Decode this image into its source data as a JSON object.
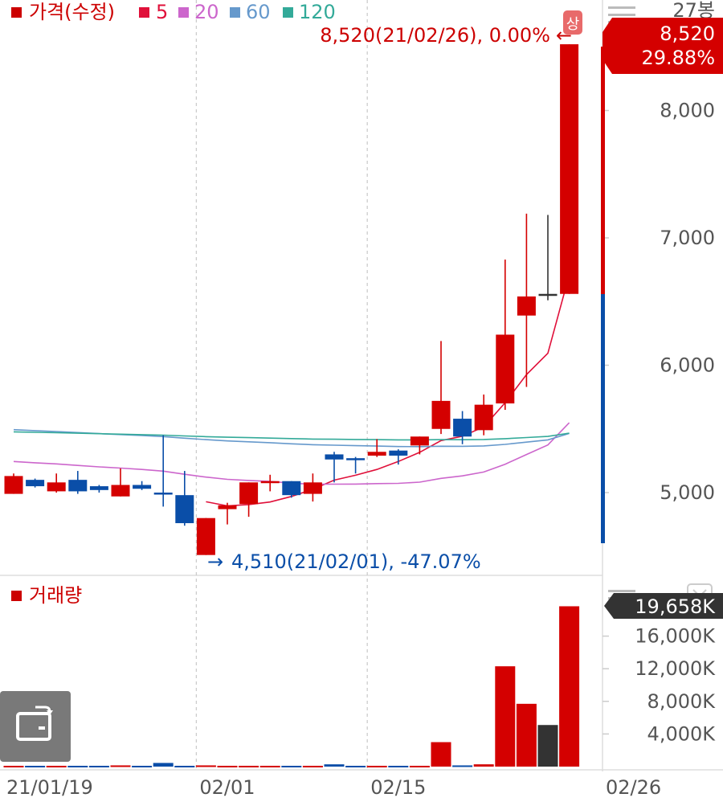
{
  "legend": {
    "price_label": "가격(수정)",
    "ma": [
      {
        "label": "5",
        "color": "#e0103a"
      },
      {
        "label": "20",
        "color": "#cc66cc"
      },
      {
        "label": "60",
        "color": "#6699cc"
      },
      {
        "label": "120",
        "color": "#33aa99"
      }
    ],
    "price_color": "#cc0000"
  },
  "candle_count_label": "27봉",
  "upper_limit_badge": "상",
  "high_annotation": "8,520(21/02/26), 0.00%",
  "low_annotation": "4,510(21/02/01), -47.07%",
  "current_price": {
    "value": "8,520",
    "change": "29.88%"
  },
  "volume_legend": "거래량",
  "current_volume": "19,658K",
  "colors": {
    "up": "#d40000",
    "down": "#0a4ea8",
    "volume_last_down": "#333333"
  },
  "chart_data": {
    "type": "candlestick",
    "price_axis": {
      "ticks": [
        5000,
        6000,
        7000,
        8000
      ],
      "tick_labels": [
        "5,000",
        "6,000",
        "7,000",
        "8,000"
      ]
    },
    "volume_axis": {
      "ticks": [
        4000,
        8000,
        12000,
        16000
      ],
      "tick_labels": [
        "4,000K",
        "8,000K",
        "12,000K",
        "16,000K"
      ],
      "unit": "K"
    },
    "x_labels": [
      {
        "index": 0,
        "label": "21/01/19"
      },
      {
        "index": 9,
        "label": "02/01"
      },
      {
        "index": 17,
        "label": "02/15"
      },
      {
        "index": 26,
        "label": "02/26"
      }
    ],
    "candles": [
      {
        "o": 4990,
        "h": 5150,
        "l": 4990,
        "c": 5130,
        "dir": "up"
      },
      {
        "o": 5100,
        "h": 5110,
        "l": 5040,
        "c": 5050,
        "dir": "down"
      },
      {
        "o": 5010,
        "h": 5150,
        "l": 5000,
        "c": 5080,
        "dir": "up"
      },
      {
        "o": 5100,
        "h": 5170,
        "l": 4990,
        "c": 5010,
        "dir": "down"
      },
      {
        "o": 5050,
        "h": 5060,
        "l": 5000,
        "c": 5020,
        "dir": "down"
      },
      {
        "o": 4970,
        "h": 5190,
        "l": 4970,
        "c": 5060,
        "dir": "up"
      },
      {
        "o": 5060,
        "h": 5090,
        "l": 5020,
        "c": 5030,
        "dir": "down"
      },
      {
        "o": 5000,
        "h": 5450,
        "l": 4890,
        "c": 4990,
        "dir": "down"
      },
      {
        "o": 4980,
        "h": 5170,
        "l": 4740,
        "c": 4760,
        "dir": "down"
      },
      {
        "o": 4510,
        "h": 4800,
        "l": 4510,
        "c": 4800,
        "dir": "up"
      },
      {
        "o": 4870,
        "h": 4920,
        "l": 4750,
        "c": 4900,
        "dir": "up"
      },
      {
        "o": 4910,
        "h": 5080,
        "l": 4810,
        "c": 5080,
        "dir": "up"
      },
      {
        "o": 5090,
        "h": 5140,
        "l": 5010,
        "c": 5090,
        "dir": "up"
      },
      {
        "o": 5090,
        "h": 5090,
        "l": 4960,
        "c": 4980,
        "dir": "down"
      },
      {
        "o": 4990,
        "h": 5150,
        "l": 4930,
        "c": 5080,
        "dir": "up"
      },
      {
        "o": 5300,
        "h": 5320,
        "l": 5080,
        "c": 5260,
        "dir": "down"
      },
      {
        "o": 5270,
        "h": 5280,
        "l": 5150,
        "c": 5270,
        "dir": "down"
      },
      {
        "o": 5290,
        "h": 5420,
        "l": 5280,
        "c": 5320,
        "dir": "up"
      },
      {
        "o": 5330,
        "h": 5340,
        "l": 5220,
        "c": 5290,
        "dir": "down"
      },
      {
        "o": 5370,
        "h": 5440,
        "l": 5300,
        "c": 5440,
        "dir": "up"
      },
      {
        "o": 5500,
        "h": 6190,
        "l": 5460,
        "c": 5720,
        "dir": "up"
      },
      {
        "o": 5580,
        "h": 5640,
        "l": 5380,
        "c": 5440,
        "dir": "down"
      },
      {
        "o": 5490,
        "h": 5770,
        "l": 5450,
        "c": 5690,
        "dir": "up"
      },
      {
        "o": 5700,
        "h": 6830,
        "l": 5650,
        "c": 6240,
        "dir": "up"
      },
      {
        "o": 6390,
        "h": 7190,
        "l": 5830,
        "c": 6540,
        "dir": "up"
      },
      {
        "o": 6560,
        "h": 7180,
        "l": 6510,
        "c": 6560,
        "dir": "flat"
      },
      {
        "o": 6560,
        "h": 8520,
        "l": 6560,
        "c": 8520,
        "dir": "up"
      }
    ],
    "volume": [
      {
        "v": 100,
        "dir": "up"
      },
      {
        "v": 100,
        "dir": "down"
      },
      {
        "v": 100,
        "dir": "up"
      },
      {
        "v": 100,
        "dir": "down"
      },
      {
        "v": 100,
        "dir": "down"
      },
      {
        "v": 150,
        "dir": "up"
      },
      {
        "v": 100,
        "dir": "down"
      },
      {
        "v": 450,
        "dir": "down"
      },
      {
        "v": 100,
        "dir": "down"
      },
      {
        "v": 150,
        "dir": "up"
      },
      {
        "v": 100,
        "dir": "up"
      },
      {
        "v": 100,
        "dir": "up"
      },
      {
        "v": 100,
        "dir": "up"
      },
      {
        "v": 100,
        "dir": "down"
      },
      {
        "v": 100,
        "dir": "up"
      },
      {
        "v": 280,
        "dir": "down"
      },
      {
        "v": 100,
        "dir": "down"
      },
      {
        "v": 100,
        "dir": "up"
      },
      {
        "v": 100,
        "dir": "down"
      },
      {
        "v": 100,
        "dir": "up"
      },
      {
        "v": 3000,
        "dir": "up"
      },
      {
        "v": 150,
        "dir": "down"
      },
      {
        "v": 280,
        "dir": "up"
      },
      {
        "v": 12300,
        "dir": "up"
      },
      {
        "v": 7700,
        "dir": "up"
      },
      {
        "v": 5100,
        "dir": "flat"
      },
      {
        "v": 19658,
        "dir": "up"
      }
    ]
  }
}
